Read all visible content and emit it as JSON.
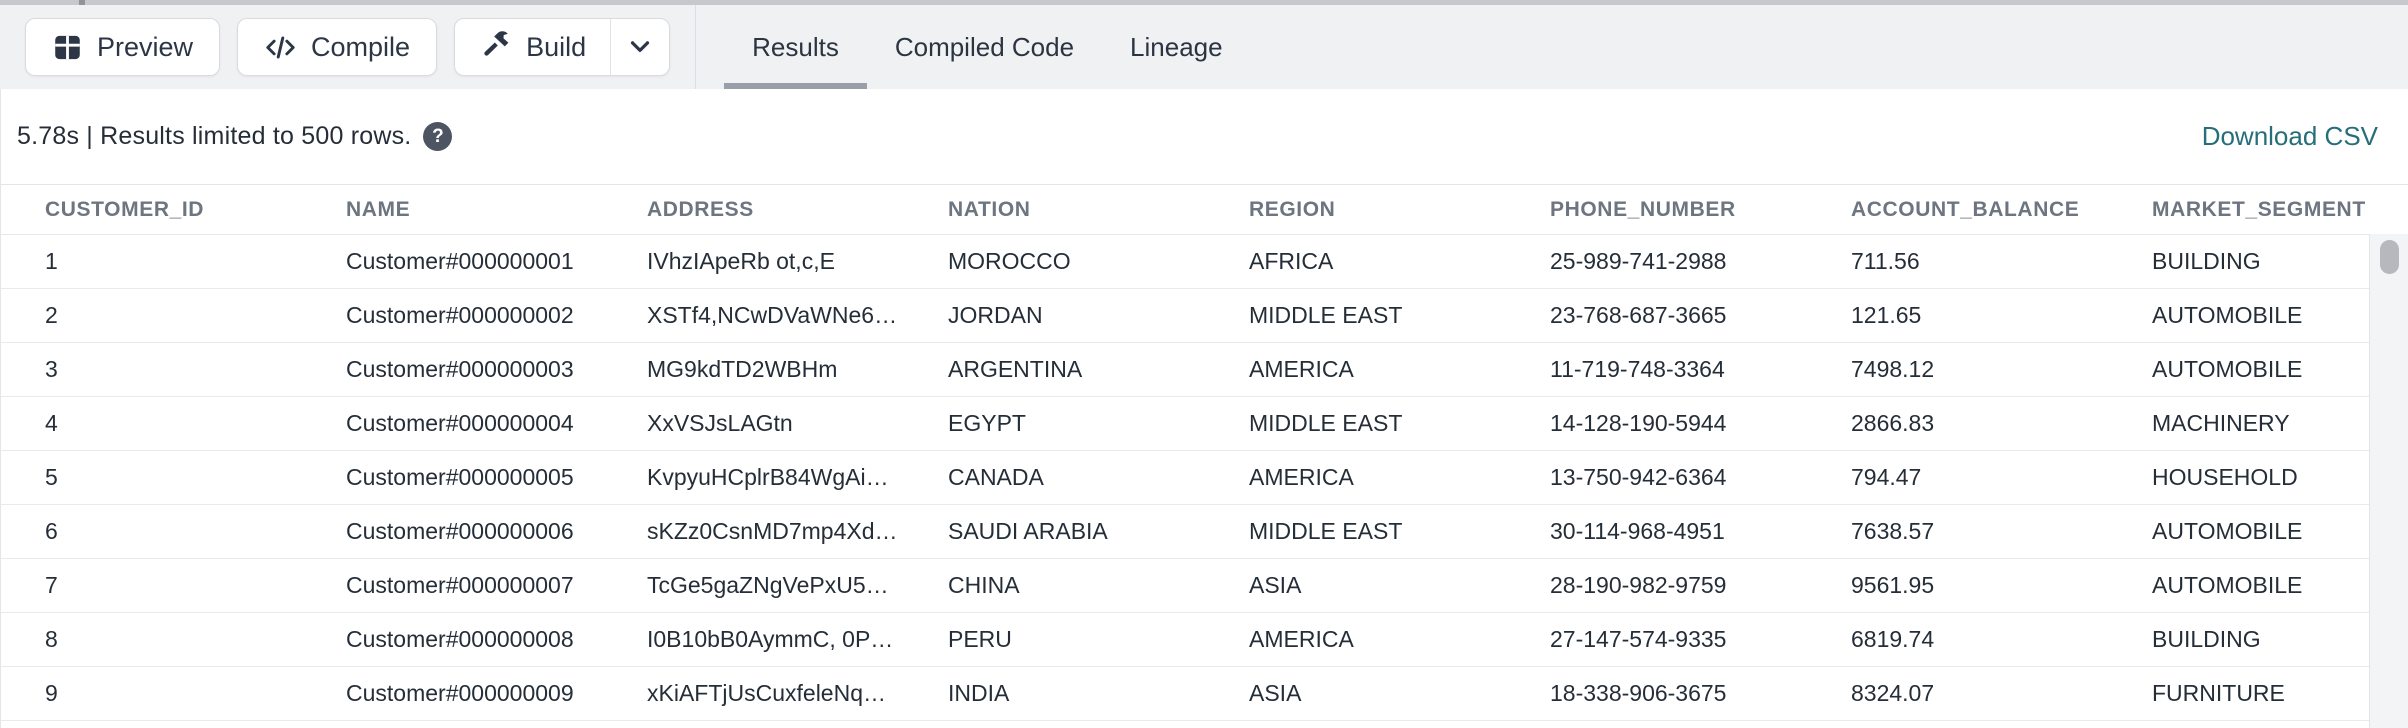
{
  "colors": {
    "toolbar_bg": "#f0f1f3",
    "accent_teal": "#266e79",
    "text_navy": "#2c3646",
    "tab_underline": "#999fa8",
    "header_text": "#6d7580"
  },
  "toolbar": {
    "preview_label": "Preview",
    "compile_label": "Compile",
    "build_label": "Build"
  },
  "tabs": [
    {
      "label": "Results",
      "active": true
    },
    {
      "label": "Compiled Code",
      "active": false
    },
    {
      "label": "Lineage",
      "active": false
    }
  ],
  "status": {
    "summary": "5.78s | Results limited to 500 rows.",
    "help_glyph": "?",
    "download_label": "Download CSV"
  },
  "table": {
    "columns": [
      "CUSTOMER_ID",
      "NAME",
      "ADDRESS",
      "NATION",
      "REGION",
      "PHONE_NUMBER",
      "ACCOUNT_BALANCE",
      "MARKET_SEGMENT"
    ],
    "rows": [
      [
        "1",
        "Customer#000000001",
        "IVhzIApeRb ot,c,E",
        "MOROCCO",
        "AFRICA",
        "25-989-741-2988",
        "711.56",
        "BUILDING"
      ],
      [
        "2",
        "Customer#000000002",
        "XSTf4,NCwDVaWNe6…",
        "JORDAN",
        "MIDDLE EAST",
        "23-768-687-3665",
        "121.65",
        "AUTOMOBILE"
      ],
      [
        "3",
        "Customer#000000003",
        "MG9kdTD2WBHm",
        "ARGENTINA",
        "AMERICA",
        "11-719-748-3364",
        "7498.12",
        "AUTOMOBILE"
      ],
      [
        "4",
        "Customer#000000004",
        "XxVSJsLAGtn",
        "EGYPT",
        "MIDDLE EAST",
        "14-128-190-5944",
        "2866.83",
        "MACHINERY"
      ],
      [
        "5",
        "Customer#000000005",
        "KvpyuHCplrB84WgAi…",
        "CANADA",
        "AMERICA",
        "13-750-942-6364",
        "794.47",
        "HOUSEHOLD"
      ],
      [
        "6",
        "Customer#000000006",
        "sKZz0CsnMD7mp4Xd…",
        "SAUDI ARABIA",
        "MIDDLE EAST",
        "30-114-968-4951",
        "7638.57",
        "AUTOMOBILE"
      ],
      [
        "7",
        "Customer#000000007",
        "TcGe5gaZNgVePxU5…",
        "CHINA",
        "ASIA",
        "28-190-982-9759",
        "9561.95",
        "AUTOMOBILE"
      ],
      [
        "8",
        "Customer#000000008",
        "I0B10bB0AymmC, 0P…",
        "PERU",
        "AMERICA",
        "27-147-574-9335",
        "6819.74",
        "BUILDING"
      ],
      [
        "9",
        "Customer#000000009",
        "xKiAFTjUsCuxfeleNq…",
        "INDIA",
        "ASIA",
        "18-338-906-3675",
        "8324.07",
        "FURNITURE"
      ]
    ]
  }
}
